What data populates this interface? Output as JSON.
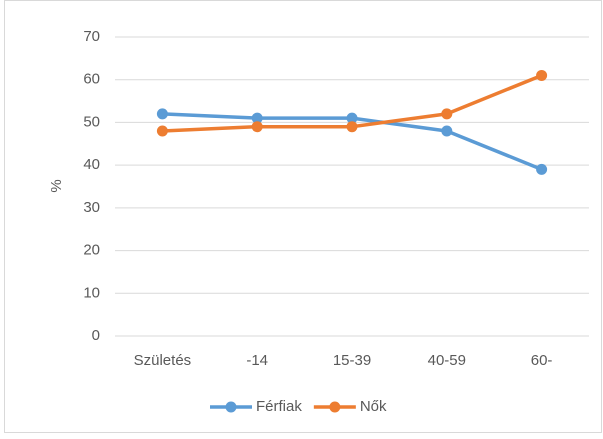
{
  "chart_data": {
    "type": "line",
    "y_label": "%",
    "categories": [
      "Születés",
      "-14",
      "15-39",
      "40-59",
      "60-"
    ],
    "series": [
      {
        "name": "Férfiak",
        "color": "#5b9bd5",
        "values": [
          52,
          51,
          51,
          48,
          39
        ]
      },
      {
        "name": "Nők",
        "color": "#ed7d31",
        "values": [
          48,
          49,
          49,
          52,
          61
        ]
      }
    ],
    "ylim": [
      0,
      70
    ],
    "yticks": [
      0,
      10,
      20,
      30,
      40,
      50,
      60,
      70
    ],
    "grid": true,
    "legend": "bottom"
  }
}
